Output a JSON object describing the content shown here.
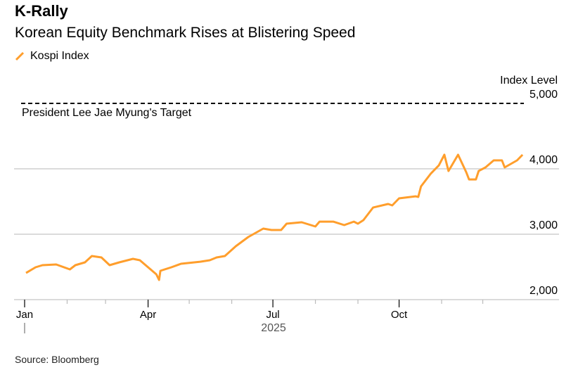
{
  "title": "K-Rally",
  "subtitle": "Korean Equity Benchmark Rises at Blistering Speed",
  "source": "Source: Bloomberg",
  "colors": {
    "series": "#ff9e2c",
    "grid": "#cfcfcf",
    "target": "#000000"
  },
  "chart_data": {
    "type": "line",
    "title": "K-Rally",
    "subtitle": "Korean Equity Benchmark Rises at Blistering Speed",
    "ylabel": "Index Level",
    "ylim": [
      2000,
      5000
    ],
    "yticks": [
      2000,
      3000,
      4000,
      5000
    ],
    "ytick_labels": [
      "2,000",
      "3,000",
      "4,000",
      "5,000"
    ],
    "xlim": [
      "2025-01-01",
      "2026-01-01"
    ],
    "xticks": [
      {
        "date": "2025-01-01",
        "label": "Jan"
      },
      {
        "date": "2025-04-01",
        "label": "Apr"
      },
      {
        "date": "2025-07-01",
        "label": "Jul"
      },
      {
        "date": "2025-10-01",
        "label": "Oct"
      }
    ],
    "xyear_label": "2025",
    "grid": true,
    "legend_position": "top-left",
    "reference_line": {
      "value": 5000,
      "label": "President Lee Jae Myung's Target",
      "style": "dashed"
    },
    "series": [
      {
        "name": "Kospi Index",
        "points": [
          [
            "2025-01-02",
            2408
          ],
          [
            "2025-01-09",
            2495
          ],
          [
            "2025-01-14",
            2527
          ],
          [
            "2025-01-24",
            2538
          ],
          [
            "2025-02-03",
            2462
          ],
          [
            "2025-02-07",
            2527
          ],
          [
            "2025-02-14",
            2570
          ],
          [
            "2025-02-19",
            2667
          ],
          [
            "2025-02-26",
            2645
          ],
          [
            "2025-03-04",
            2527
          ],
          [
            "2025-03-11",
            2570
          ],
          [
            "2025-03-21",
            2624
          ],
          [
            "2025-03-26",
            2602
          ],
          [
            "2025-04-01",
            2495
          ],
          [
            "2025-04-07",
            2387
          ],
          [
            "2025-04-09",
            2301
          ],
          [
            "2025-04-10",
            2441
          ],
          [
            "2025-04-18",
            2495
          ],
          [
            "2025-04-25",
            2548
          ],
          [
            "2025-05-09",
            2580
          ],
          [
            "2025-05-16",
            2602
          ],
          [
            "2025-05-21",
            2645
          ],
          [
            "2025-05-27",
            2667
          ],
          [
            "2025-06-04",
            2817
          ],
          [
            "2025-06-13",
            2957
          ],
          [
            "2025-06-24",
            3086
          ],
          [
            "2025-06-30",
            3064
          ],
          [
            "2025-07-07",
            3064
          ],
          [
            "2025-07-11",
            3161
          ],
          [
            "2025-07-22",
            3183
          ],
          [
            "2025-08-01",
            3118
          ],
          [
            "2025-08-04",
            3193
          ],
          [
            "2025-08-14",
            3193
          ],
          [
            "2025-08-22",
            3140
          ],
          [
            "2025-08-29",
            3193
          ],
          [
            "2025-09-01",
            3161
          ],
          [
            "2025-09-05",
            3215
          ],
          [
            "2025-09-12",
            3408
          ],
          [
            "2025-09-23",
            3462
          ],
          [
            "2025-09-26",
            3441
          ],
          [
            "2025-10-01",
            3548
          ],
          [
            "2025-10-13",
            3580
          ],
          [
            "2025-10-15",
            3570
          ],
          [
            "2025-10-17",
            3731
          ],
          [
            "2025-10-24",
            3924
          ],
          [
            "2025-10-30",
            4053
          ],
          [
            "2025-11-03",
            4215
          ],
          [
            "2025-11-06",
            3967
          ],
          [
            "2025-11-13",
            4215
          ],
          [
            "2025-11-19",
            3946
          ],
          [
            "2025-11-21",
            3838
          ],
          [
            "2025-11-26",
            3838
          ],
          [
            "2025-11-28",
            3967
          ],
          [
            "2025-12-03",
            4021
          ],
          [
            "2025-12-09",
            4129
          ],
          [
            "2025-12-15",
            4129
          ],
          [
            "2025-12-17",
            4021
          ],
          [
            "2025-12-26",
            4129
          ],
          [
            "2025-12-30",
            4215
          ]
        ]
      }
    ]
  }
}
